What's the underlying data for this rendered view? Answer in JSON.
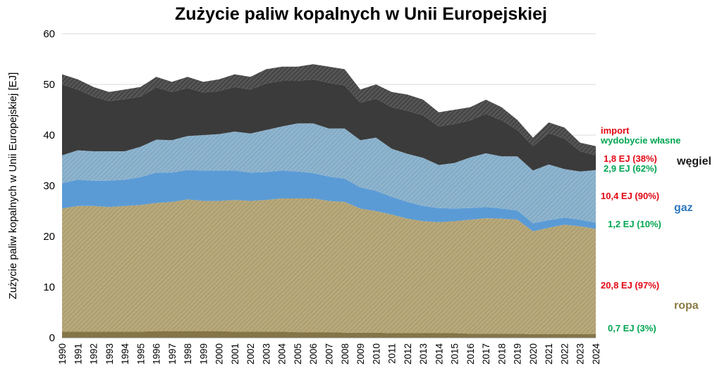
{
  "title": "Zużycie paliw kopalnych w Unii Europejskiej",
  "y_axis_label": "Zużycie paliw kopalnych w Unii Europejskiej [EJ]",
  "legend": {
    "import_header": "import",
    "own_header": "wydobycie własne",
    "coal_import": "1,8 EJ (38%)",
    "coal_own": "2,9 EJ (62%)",
    "coal_name": "węgiel",
    "gas_import": "10,4 EJ (90%)",
    "gas_name": "gaz",
    "gas_own": "1,2 EJ (10%)",
    "oil_import": "20,8 EJ (97%)",
    "oil_name": "ropa",
    "oil_own": "0,7 EJ (3%)"
  },
  "colors": {
    "import_text": "#e30613",
    "own_text": "#00a651",
    "coal_label": "#1a1a1a",
    "gas_label": "#2e78c2",
    "oil_label": "#8a7a45",
    "grid": "#d9d9d9",
    "axis": "#808080"
  },
  "chart_data": {
    "type": "area",
    "stacked": true,
    "title": "Zużycie paliw kopalnych w Unii Europejskiej",
    "xlabel": "",
    "ylabel": "Zużycie paliw kopalnych w Unii Europejskiej [EJ]",
    "ylim": [
      0,
      60
    ],
    "yticks": [
      0,
      10,
      20,
      30,
      40,
      50,
      60
    ],
    "grid": true,
    "legend_position": "right",
    "x": [
      1990,
      1991,
      1992,
      1993,
      1994,
      1995,
      1996,
      1997,
      1998,
      1999,
      2000,
      2001,
      2002,
      2003,
      2004,
      2005,
      2006,
      2007,
      2008,
      2009,
      2010,
      2011,
      2012,
      2013,
      2014,
      2015,
      2016,
      2017,
      2018,
      2019,
      2020,
      2021,
      2022,
      2023,
      2024
    ],
    "series": [
      {
        "name": "ropa — wydobycie własne",
        "style": "solid",
        "color": "#857546",
        "values": [
          1.2,
          1.2,
          1.2,
          1.2,
          1.2,
          1.2,
          1.3,
          1.3,
          1.3,
          1.3,
          1.3,
          1.2,
          1.2,
          1.2,
          1.2,
          1.1,
          1.1,
          1.1,
          1.0,
          1.0,
          1.0,
          0.9,
          0.9,
          0.9,
          0.9,
          0.9,
          0.8,
          0.8,
          0.8,
          0.8,
          0.7,
          0.7,
          0.7,
          0.7,
          0.7
        ]
      },
      {
        "name": "ropa — import",
        "style": "hatched",
        "color": "#b7a97c",
        "hatch_color": "#9f8f5d",
        "values": [
          24.3,
          24.8,
          24.8,
          24.6,
          24.8,
          25.0,
          25.3,
          25.5,
          26.0,
          25.7,
          25.7,
          26.0,
          25.8,
          26.0,
          26.3,
          26.4,
          26.4,
          25.9,
          25.8,
          24.5,
          24.0,
          23.4,
          22.6,
          22.1,
          21.9,
          22.1,
          22.5,
          22.8,
          22.7,
          22.5,
          20.3,
          21.0,
          21.6,
          21.3,
          20.8
        ]
      },
      {
        "name": "gaz — wydobycie własne",
        "style": "solid",
        "color": "#5b9bd5",
        "values": [
          5.0,
          5.2,
          5.0,
          5.2,
          5.2,
          5.5,
          6.0,
          5.8,
          5.8,
          6.0,
          6.0,
          5.8,
          5.6,
          5.5,
          5.5,
          5.3,
          5.0,
          4.8,
          4.6,
          4.2,
          4.0,
          3.5,
          3.3,
          3.0,
          2.8,
          2.5,
          2.3,
          2.2,
          2.0,
          1.8,
          1.6,
          1.5,
          1.4,
          1.3,
          1.2
        ]
      },
      {
        "name": "gaz — import",
        "style": "hatched",
        "color": "#8fb4cd",
        "hatch_color": "#6f9fbe",
        "values": [
          5.5,
          5.8,
          5.8,
          5.8,
          5.6,
          6.0,
          6.5,
          6.4,
          6.7,
          7.0,
          7.2,
          7.7,
          7.7,
          8.3,
          8.7,
          9.5,
          9.8,
          9.5,
          9.9,
          9.3,
          10.5,
          9.5,
          9.5,
          9.5,
          8.5,
          9.0,
          10.0,
          10.6,
          10.3,
          10.7,
          10.4,
          11.0,
          9.6,
          9.5,
          10.4
        ]
      },
      {
        "name": "węgiel — wydobycie własne",
        "style": "solid",
        "color": "#3b3b3b",
        "values": [
          14.0,
          12.0,
          10.8,
          9.9,
          10.3,
          9.9,
          10.3,
          9.5,
          9.5,
          8.4,
          8.5,
          8.8,
          8.7,
          9.2,
          9.0,
          8.4,
          8.7,
          9.0,
          8.5,
          7.4,
          7.7,
          8.2,
          8.5,
          8.4,
          7.6,
          7.7,
          7.3,
          7.8,
          7.1,
          5.2,
          4.8,
          6.2,
          6.0,
          4.0,
          2.9
        ]
      },
      {
        "name": "węgiel — import",
        "style": "hatched",
        "color": "#555555",
        "hatch_color": "#2b2b2b",
        "values": [
          2.0,
          2.0,
          1.9,
          1.8,
          1.9,
          1.9,
          2.1,
          2.0,
          2.2,
          2.1,
          2.3,
          2.5,
          2.5,
          2.8,
          2.8,
          2.8,
          3.0,
          3.2,
          3.2,
          2.6,
          2.8,
          3.0,
          3.2,
          3.1,
          2.8,
          2.8,
          2.6,
          2.8,
          2.6,
          2.0,
          1.7,
          2.1,
          2.2,
          1.7,
          1.8
        ]
      }
    ]
  }
}
